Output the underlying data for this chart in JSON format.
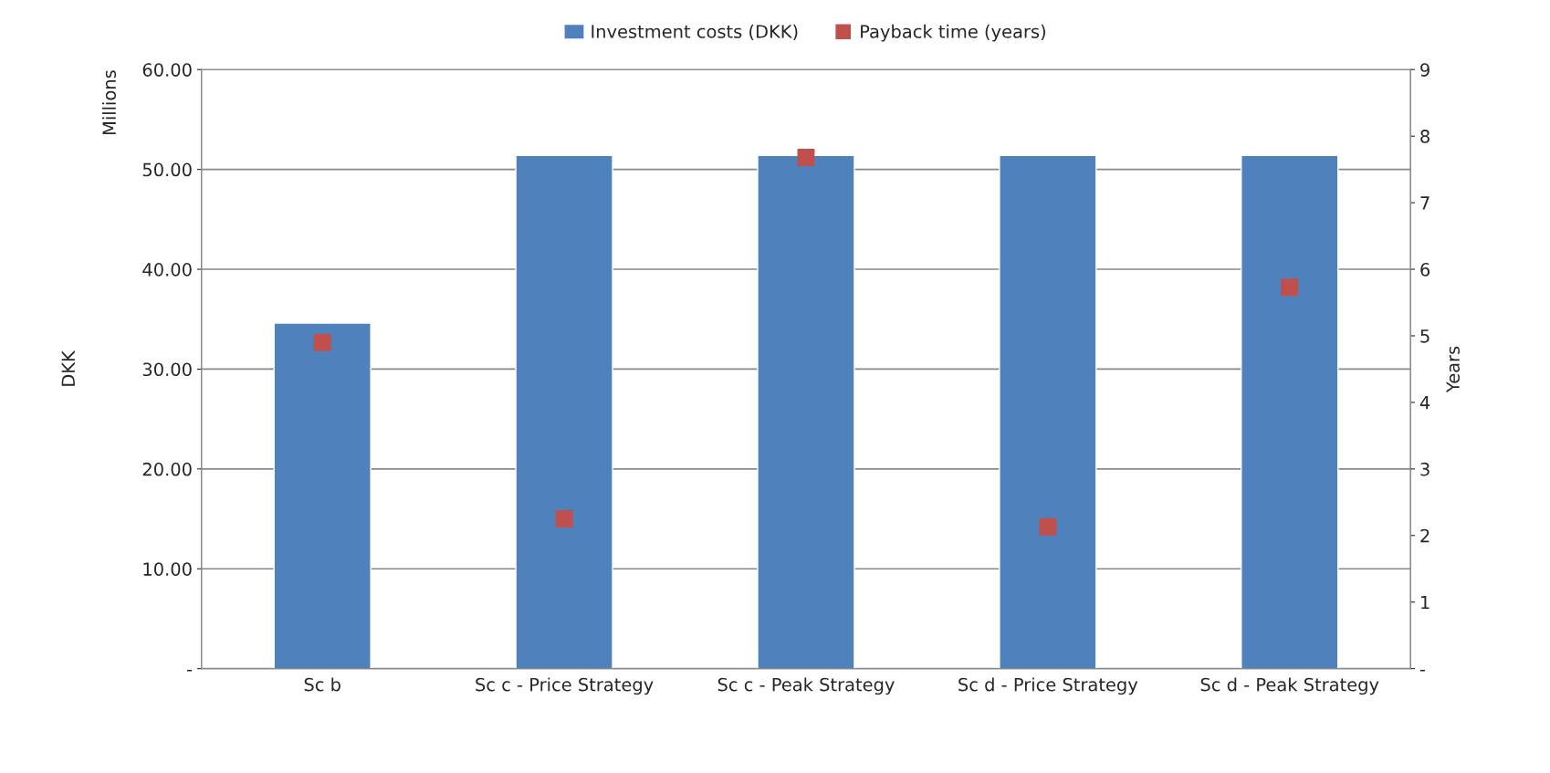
{
  "chart_data": {
    "type": "bar",
    "categories": [
      "Sc b",
      "Sc c - Price Strategy",
      "Sc c - Peak Strategy",
      "Sc d - Price Strategy",
      "Sc d - Peak Strategy"
    ],
    "series": [
      {
        "name": "Investment costs (DKK)",
        "color": "#4f81bd",
        "values": [
          34.6,
          51.4,
          51.4,
          51.4,
          51.4
        ]
      },
      {
        "name": "Payback time (years)",
        "type": "scatter",
        "axis": "y2",
        "color": "#c0504d",
        "marker": "square",
        "values": [
          4.9,
          2.25,
          7.68,
          2.13,
          5.73
        ]
      }
    ],
    "ylabel": "DKK",
    "y2label": "Years",
    "annotations": [
      "Millions"
    ],
    "ylim": [
      0,
      60
    ],
    "yticks": [
      {
        "value": 0,
        "label": "-"
      },
      {
        "value": 10,
        "label": "10.00"
      },
      {
        "value": 20,
        "label": "20.00"
      },
      {
        "value": 30,
        "label": "30.00"
      },
      {
        "value": 40,
        "label": "40.00"
      },
      {
        "value": 50,
        "label": "50.00"
      },
      {
        "value": 60,
        "label": "60.00"
      }
    ],
    "y2lim": [
      0,
      9
    ],
    "y2ticks": [
      {
        "value": 0,
        "label": "-"
      },
      1,
      2,
      3,
      4,
      5,
      6,
      7,
      8,
      9
    ],
    "grid": "y",
    "legend": "top"
  }
}
